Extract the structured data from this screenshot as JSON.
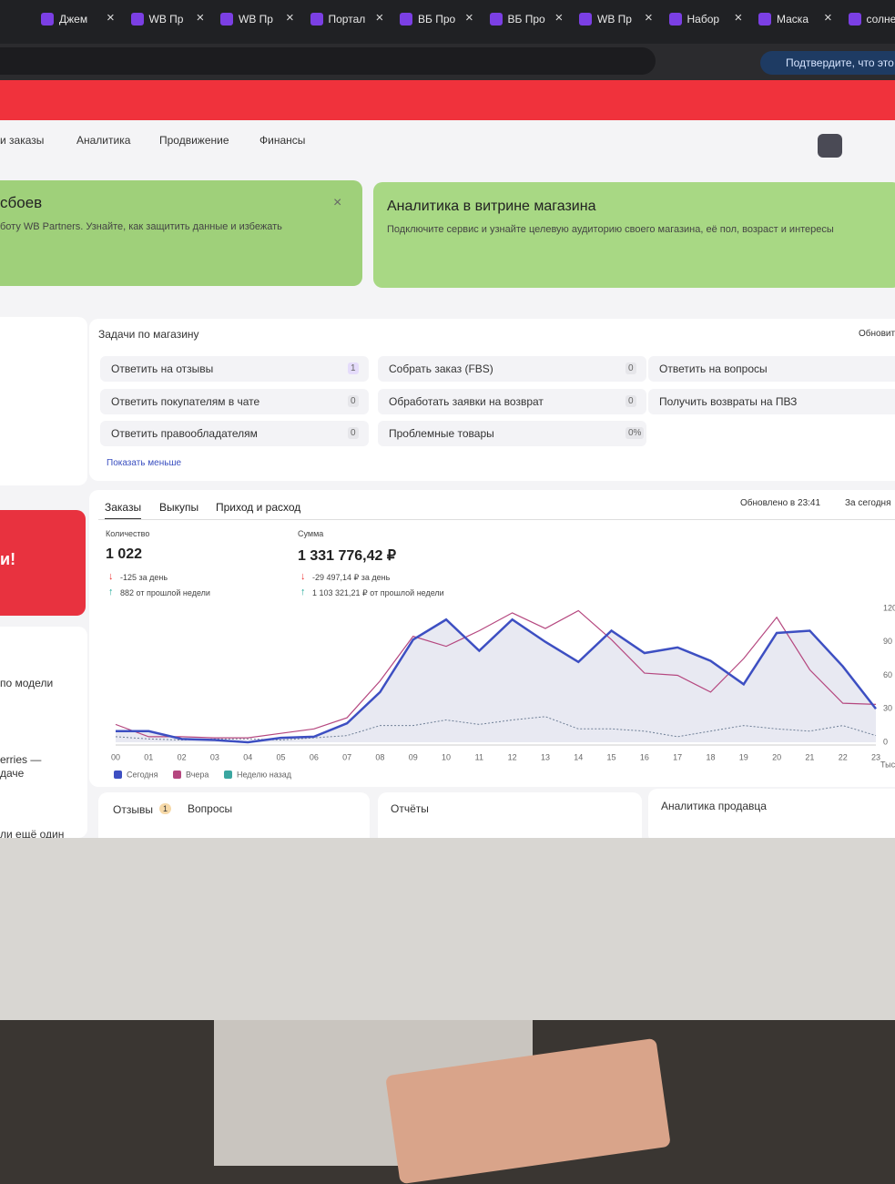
{
  "browser": {
    "tabs": [
      "Джем",
      "WB Пр",
      "WB Пр",
      "Портал",
      "ВБ Про",
      "ВБ Про",
      "WB Пр",
      "Набор",
      "Маска",
      "солнеч"
    ],
    "notice": "Подтвердите, что это в"
  },
  "nav": [
    "и заказы",
    "Аналитика",
    "Продвижение",
    "Финансы"
  ],
  "banners": [
    {
      "title": "сбоев",
      "text": "боту WB Partners. Узнайте, как защитить данные и избежать"
    },
    {
      "title": "Аналитика в витрине магазина",
      "text": "Подключите сервис и узнайте целевую аудиторию своего магазина, её пол, возраст и интересы"
    }
  ],
  "sidebar": {
    "promo": "и!",
    "model": "по модели",
    "line1": "erries —",
    "line2": "даче",
    "line3": "ли ещё один"
  },
  "tasks": {
    "title": "Задачи по магазину",
    "refresh": "Обновит",
    "show_less": "Показать меньше",
    "items": [
      {
        "label": "Ответить на отзывы",
        "count": 1
      },
      {
        "label": "Ответить покупателям в чате",
        "count": 0
      },
      {
        "label": "Ответить правообладателям",
        "count": 0
      },
      {
        "label": "Собрать заказ (FBS)",
        "count": 0
      },
      {
        "label": "Обработать заявки на возврат",
        "count": 0
      },
      {
        "label": "Проблемные товары",
        "count": "0%"
      },
      {
        "label": "Ответить на вопросы"
      },
      {
        "label": "Получить возвраты на ПВЗ"
      }
    ]
  },
  "orders": {
    "tabs": [
      "Заказы",
      "Выкупы",
      "Приход и расход"
    ],
    "updated": "Обновлено в 23:41",
    "period": "За сегодня",
    "metrics": [
      {
        "label": "Количество",
        "value": "1 022",
        "day": "-125 за день",
        "week": "882 от прошлой недели"
      },
      {
        "label": "Сумма",
        "value": "1 331 776,42 ₽",
        "day": "-29 497,14 ₽ за день",
        "week": "1 103 321,21 ₽ от прошлой недели"
      }
    ]
  },
  "chart_data": {
    "type": "line",
    "y_unit": "Тыс.",
    "categories": [
      "00",
      "01",
      "02",
      "03",
      "04",
      "05",
      "06",
      "07",
      "08",
      "09",
      "10",
      "11",
      "12",
      "13",
      "14",
      "15",
      "16",
      "17",
      "18",
      "19",
      "20",
      "21",
      "22",
      "23"
    ],
    "series": [
      {
        "name": "Сегодня",
        "color": "#3d4fc2",
        "values": [
          10,
          10,
          3,
          2,
          0,
          4,
          5,
          17,
          45,
          92,
          110,
          82,
          110,
          90,
          72,
          100,
          80,
          85,
          73,
          52,
          98,
          100,
          68,
          30
        ]
      },
      {
        "name": "Вчера",
        "color": "#b5477f",
        "values": [
          16,
          5,
          5,
          4,
          4,
          8,
          12,
          22,
          55,
          95,
          86,
          100,
          116,
          102,
          118,
          92,
          62,
          60,
          45,
          75,
          112,
          65,
          35,
          34
        ]
      },
      {
        "name": "Неделю назад",
        "color": "#3aa6a0",
        "values": [
          5,
          3,
          2,
          3,
          3,
          2,
          4,
          6,
          15,
          15,
          20,
          16,
          20,
          23,
          12,
          12,
          10,
          5,
          10,
          15,
          12,
          10,
          15,
          6
        ]
      }
    ],
    "ylim": [
      0,
      120
    ],
    "yticks": [
      0,
      30,
      60,
      90,
      120
    ],
    "grid": false
  },
  "bottom": {
    "reviews": "Отзывы",
    "reviews_count": 1,
    "questions": "Вопросы",
    "reports": "Отчёты",
    "seller": "Аналитика продавца"
  }
}
